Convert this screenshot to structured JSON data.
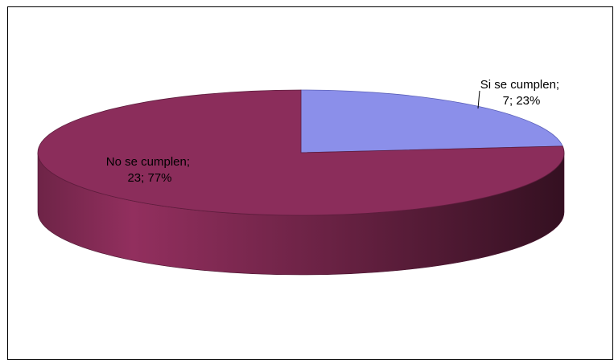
{
  "chart_data": {
    "type": "pie",
    "style": "3d",
    "slices": [
      {
        "name": "Si se cumplen",
        "value": 7,
        "percent": 23,
        "color": "#8b8fea",
        "label_line1": "Si se cumplen;",
        "label_line2": "7; 23%"
      },
      {
        "name": "No se cumplen",
        "value": 23,
        "percent": 77,
        "color": "#8b2d5b",
        "label_line1": "No se cumplen;",
        "label_line2": "23; 77%"
      }
    ],
    "legend": false
  }
}
